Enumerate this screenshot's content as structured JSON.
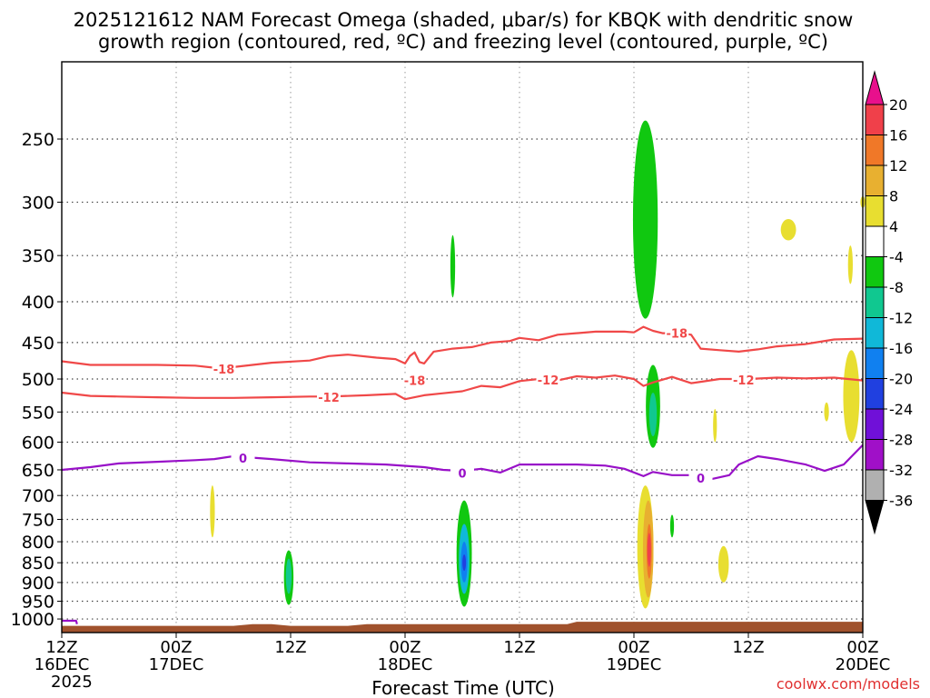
{
  "chart_data": {
    "type": "heatmap",
    "title_line1": "2025121612 NAM Forecast Omega (shaded, μbar/s) for KBQK with dendritic snow",
    "title_line2": "growth region (contoured, red, ºC) and freezing level (contoured, purple, ºC)",
    "xlabel": "Forecast Time (UTC)",
    "credit": "coolwx.com/models",
    "x_range_hours": [
      0,
      84
    ],
    "y_axis_pressure": {
      "top": 200,
      "bottom": 1040,
      "ticks": [
        250,
        300,
        350,
        400,
        450,
        500,
        550,
        600,
        650,
        700,
        750,
        800,
        850,
        900,
        950,
        1000
      ]
    },
    "x_ticks": [
      {
        "hour": 0,
        "line1": "12Z",
        "line2": "16DEC",
        "line3": "2025"
      },
      {
        "hour": 12,
        "line1": "00Z",
        "line2": "17DEC",
        "line3": ""
      },
      {
        "hour": 24,
        "line1": "12Z",
        "line2": "",
        "line3": ""
      },
      {
        "hour": 36,
        "line1": "00Z",
        "line2": "18DEC",
        "line3": ""
      },
      {
        "hour": 48,
        "line1": "12Z",
        "line2": "",
        "line3": ""
      },
      {
        "hour": 60,
        "line1": "00Z",
        "line2": "19DEC",
        "line3": ""
      },
      {
        "hour": 72,
        "line1": "12Z",
        "line2": "",
        "line3": ""
      },
      {
        "hour": 84,
        "line1": "00Z",
        "line2": "20DEC",
        "line3": ""
      }
    ],
    "colorbar": {
      "labels": [
        "20",
        "16",
        "12",
        "8",
        "4",
        "-4",
        "-8",
        "-12",
        "-16",
        "-20",
        "-24",
        "-28",
        "-32",
        "-36"
      ],
      "bins": [
        {
          "from": 20,
          "to": 99,
          "color": "#e8108c"
        },
        {
          "from": 16,
          "to": 20,
          "color": "#f0404a"
        },
        {
          "from": 12,
          "to": 16,
          "color": "#f07828"
        },
        {
          "from": 8,
          "to": 12,
          "color": "#e8b030"
        },
        {
          "from": 4,
          "to": 8,
          "color": "#e8de30"
        },
        {
          "from": -4,
          "to": 4,
          "color": "#ffffff"
        },
        {
          "from": -8,
          "to": -4,
          "color": "#10c810"
        },
        {
          "from": -12,
          "to": -8,
          "color": "#10c890"
        },
        {
          "from": -16,
          "to": -12,
          "color": "#10b8d8"
        },
        {
          "from": -20,
          "to": -16,
          "color": "#1080f0"
        },
        {
          "from": -24,
          "to": -20,
          "color": "#2040e0"
        },
        {
          "from": -28,
          "to": -24,
          "color": "#7010d8"
        },
        {
          "from": -32,
          "to": -28,
          "color": "#a010c8"
        },
        {
          "from": -36,
          "to": -32,
          "color": "#b0b0b0"
        },
        {
          "from": -99,
          "to": -36,
          "color": "#000000"
        }
      ]
    },
    "omega_features": [
      {
        "label": "omega-green-mid-upper-19dec",
        "hour": 61.2,
        "p_top": 237,
        "p_bot": 420,
        "width_h": 2.6,
        "color": "#10c810"
      },
      {
        "label": "omega-green-low-19dec",
        "hour": 62.0,
        "p_top": 480,
        "p_bot": 610,
        "width_h": 1.5,
        "color": "#10c810"
      },
      {
        "label": "omega-teal-core-19dec",
        "hour": 62.0,
        "p_top": 520,
        "p_bot": 590,
        "width_h": 0.8,
        "color": "#10c890"
      },
      {
        "label": "omega-green-18dec-mid",
        "hour": 41.0,
        "p_top": 330,
        "p_bot": 395,
        "width_h": 0.5,
        "color": "#10c810"
      },
      {
        "label": "omega-green-17dec-low",
        "hour": 23.8,
        "p_top": 820,
        "p_bot": 960,
        "width_h": 1.0,
        "color": "#10c810"
      },
      {
        "label": "omega-teal-17dec-low",
        "hour": 23.8,
        "p_top": 840,
        "p_bot": 930,
        "width_h": 0.6,
        "color": "#10c890"
      },
      {
        "label": "omega-green-18dec-low",
        "hour": 42.2,
        "p_top": 710,
        "p_bot": 965,
        "width_h": 1.6,
        "color": "#10c810"
      },
      {
        "label": "omega-teal-18dec-low",
        "hour": 42.2,
        "p_top": 760,
        "p_bot": 930,
        "width_h": 1.1,
        "color": "#10b8d8"
      },
      {
        "label": "omega-blue-18dec-low",
        "hour": 42.2,
        "p_top": 800,
        "p_bot": 900,
        "width_h": 0.7,
        "color": "#1080f0"
      },
      {
        "label": "omega-purple-18dec-core",
        "hour": 42.2,
        "p_top": 830,
        "p_bot": 870,
        "width_h": 0.35,
        "color": "#2040e0"
      },
      {
        "label": "omega-yellow-19dec-low",
        "hour": 61.2,
        "p_top": 680,
        "p_bot": 970,
        "width_h": 1.7,
        "color": "#e8de30"
      },
      {
        "label": "omega-gold-19dec-low",
        "hour": 61.5,
        "p_top": 710,
        "p_bot": 940,
        "width_h": 1.1,
        "color": "#e8b030"
      },
      {
        "label": "omega-orange-19dec-core",
        "hour": 61.6,
        "p_top": 760,
        "p_bot": 890,
        "width_h": 0.55,
        "color": "#f07828"
      },
      {
        "label": "omega-red-19dec-core",
        "hour": 61.6,
        "p_top": 780,
        "p_bot": 860,
        "width_h": 0.25,
        "color": "#f0404a"
      },
      {
        "label": "omega-green-19dec-small",
        "hour": 64.0,
        "p_top": 740,
        "p_bot": 790,
        "width_h": 0.4,
        "color": "#10c810"
      },
      {
        "label": "omega-yellow-17dec",
        "hour": 15.8,
        "p_top": 680,
        "p_bot": 790,
        "width_h": 0.5,
        "color": "#e8de30"
      },
      {
        "label": "omega-yellow-19dec-mid",
        "hour": 68.5,
        "p_top": 545,
        "p_bot": 600,
        "width_h": 0.4,
        "color": "#e8de30"
      },
      {
        "label": "omega-yellow-19dec-lowsmall",
        "hour": 69.4,
        "p_top": 810,
        "p_bot": 900,
        "width_h": 1.1,
        "color": "#e8de30"
      },
      {
        "label": "omega-yellow-19dec-upper",
        "hour": 76.2,
        "p_top": 315,
        "p_bot": 335,
        "width_h": 1.6,
        "color": "#e8de30"
      },
      {
        "label": "omega-yellow-20dec-upper",
        "hour": 82.7,
        "p_top": 340,
        "p_bot": 380,
        "width_h": 0.5,
        "color": "#e8de30"
      },
      {
        "label": "omega-yellow-20dec-mid",
        "hour": 82.8,
        "p_top": 460,
        "p_bot": 600,
        "width_h": 1.7,
        "color": "#e8de30"
      },
      {
        "label": "omega-yellow-19dec-small",
        "hour": 80.2,
        "p_top": 535,
        "p_bot": 565,
        "width_h": 0.5,
        "color": "#e8de30"
      },
      {
        "label": "omega-yellow-20dec-top",
        "hour": 84.0,
        "p_top": 295,
        "p_bot": 305,
        "width_h": 0.5,
        "color": "#e8de30"
      }
    ],
    "contours": [
      {
        "name": "minus-18-isotherm",
        "label": "-18",
        "color": "#f04848",
        "label_points": [
          {
            "hour": 17.0,
            "p": 486
          },
          {
            "hour": 37.0,
            "p": 502
          },
          {
            "hour": 64.5,
            "p": 438
          }
        ],
        "points": [
          [
            0,
            475
          ],
          [
            3,
            480
          ],
          [
            6,
            480
          ],
          [
            10,
            480
          ],
          [
            14,
            481
          ],
          [
            16,
            484
          ],
          [
            18,
            483
          ],
          [
            22,
            477
          ],
          [
            26,
            474
          ],
          [
            28,
            468
          ],
          [
            30,
            466
          ],
          [
            33,
            470
          ],
          [
            35,
            472
          ],
          [
            36,
            478
          ],
          [
            36.5,
            468
          ],
          [
            37,
            463
          ],
          [
            37.5,
            476
          ],
          [
            38,
            478
          ],
          [
            39,
            462
          ],
          [
            41,
            458
          ],
          [
            43,
            456
          ],
          [
            45,
            450
          ],
          [
            47,
            448
          ],
          [
            48,
            444
          ],
          [
            50,
            447
          ],
          [
            52,
            440
          ],
          [
            56,
            436
          ],
          [
            59,
            436
          ],
          [
            60,
            437
          ],
          [
            61,
            430
          ],
          [
            62,
            435
          ],
          [
            63,
            438
          ],
          [
            65,
            438
          ],
          [
            66,
            440
          ],
          [
            67,
            458
          ],
          [
            69,
            460
          ],
          [
            71,
            462
          ],
          [
            73,
            459
          ],
          [
            75,
            455
          ],
          [
            78,
            452
          ],
          [
            81,
            446
          ],
          [
            84,
            445
          ]
        ]
      },
      {
        "name": "minus-12-isotherm",
        "label": "-12",
        "color": "#f04848",
        "label_points": [
          {
            "hour": 28.0,
            "p": 527
          },
          {
            "hour": 51.0,
            "p": 501
          },
          {
            "hour": 71.5,
            "p": 501
          }
        ],
        "points": [
          [
            0,
            520
          ],
          [
            3,
            525
          ],
          [
            6,
            526
          ],
          [
            10,
            527
          ],
          [
            14,
            528
          ],
          [
            18,
            528
          ],
          [
            22,
            527
          ],
          [
            26,
            526
          ],
          [
            28,
            526
          ],
          [
            32,
            524
          ],
          [
            35,
            522
          ],
          [
            36,
            530
          ],
          [
            38,
            524
          ],
          [
            40,
            521
          ],
          [
            42,
            518
          ],
          [
            44,
            510
          ],
          [
            46,
            512
          ],
          [
            48,
            503
          ],
          [
            50,
            500
          ],
          [
            52,
            502
          ],
          [
            54,
            496
          ],
          [
            56,
            498
          ],
          [
            58,
            495
          ],
          [
            60,
            500
          ],
          [
            61,
            510
          ],
          [
            62,
            505
          ],
          [
            64,
            497
          ],
          [
            66,
            506
          ],
          [
            67,
            504
          ],
          [
            69,
            500
          ],
          [
            72,
            500
          ],
          [
            75,
            498
          ],
          [
            78,
            499
          ],
          [
            81,
            498
          ],
          [
            84,
            502
          ]
        ]
      },
      {
        "name": "freezing-level-0c",
        "label": "0",
        "color": "#9810c8",
        "label_points": [
          {
            "hour": 19.0,
            "p": 628
          },
          {
            "hour": 42.0,
            "p": 656
          },
          {
            "hour": 67.0,
            "p": 666
          }
        ],
        "points": [
          [
            0,
            650
          ],
          [
            3,
            645
          ],
          [
            6,
            638
          ],
          [
            10,
            635
          ],
          [
            14,
            632
          ],
          [
            16,
            630
          ],
          [
            18,
            625
          ],
          [
            22,
            630
          ],
          [
            26,
            636
          ],
          [
            30,
            638
          ],
          [
            34,
            640
          ],
          [
            38,
            645
          ],
          [
            40,
            650
          ],
          [
            42,
            652
          ],
          [
            44,
            648
          ],
          [
            46,
            655
          ],
          [
            48,
            640
          ],
          [
            50,
            640
          ],
          [
            54,
            640
          ],
          [
            57,
            642
          ],
          [
            59,
            648
          ],
          [
            61,
            662
          ],
          [
            62,
            654
          ],
          [
            64,
            660
          ],
          [
            66,
            660
          ],
          [
            68,
            668
          ],
          [
            70,
            660
          ],
          [
            71,
            640
          ],
          [
            73,
            625
          ],
          [
            75,
            630
          ],
          [
            78,
            640
          ],
          [
            80,
            652
          ],
          [
            82,
            640
          ],
          [
            84,
            605
          ]
        ]
      },
      {
        "name": "freezing-level-sfc-fragment",
        "label": "",
        "color": "#9810c8",
        "label_points": [],
        "points": [
          [
            0,
            1005
          ],
          [
            1.5,
            1005
          ],
          [
            1.6,
            1015
          ]
        ]
      }
    ],
    "terrain": {
      "color": "#a0522d",
      "points": [
        [
          0,
          1020
        ],
        [
          18,
          1020
        ],
        [
          20,
          1015
        ],
        [
          22,
          1015
        ],
        [
          24,
          1020
        ],
        [
          30,
          1020
        ],
        [
          32,
          1015
        ],
        [
          53,
          1015
        ],
        [
          54,
          1008
        ],
        [
          84,
          1008
        ]
      ],
      "bottom_p": 1040
    }
  }
}
